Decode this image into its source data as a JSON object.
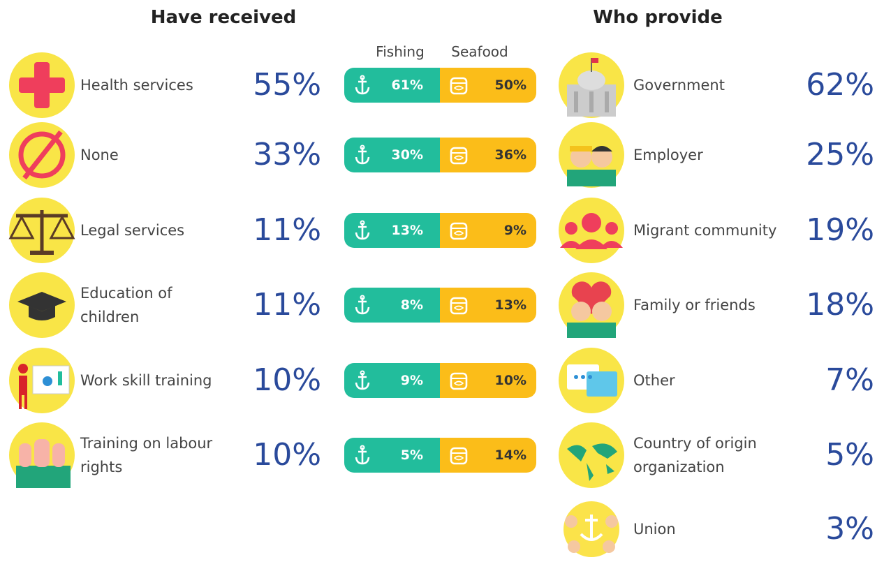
{
  "left": {
    "title": "Have received",
    "headers": [
      "Fishing",
      "Seafood"
    ],
    "items": [
      {
        "label": "Health services",
        "total": "55%",
        "fishing": "61%",
        "seafood": "50%"
      },
      {
        "label": "None",
        "total": "33%",
        "fishing": "30%",
        "seafood": "36%"
      },
      {
        "label": "Legal services",
        "total": "11%",
        "fishing": "13%",
        "seafood": "9%"
      },
      {
        "label": "Education of\nchildren",
        "total": "11%",
        "fishing": "8%",
        "seafood": "13%"
      },
      {
        "label": "Work skill training",
        "total": "10%",
        "fishing": "9%",
        "seafood": "10%"
      },
      {
        "label": "Training on labour\nrights",
        "total": "10%",
        "fishing": "5%",
        "seafood": "14%"
      }
    ]
  },
  "right": {
    "title": "Who provide",
    "items": [
      {
        "label": "Government",
        "value": "62%"
      },
      {
        "label": "Employer",
        "value": "25%"
      },
      {
        "label": "Migrant community",
        "value": "19%"
      },
      {
        "label": "Family or friends",
        "value": "18%"
      },
      {
        "label": "Other",
        "value": "7%"
      },
      {
        "label": "Country of origin\norganization",
        "value": "5%"
      },
      {
        "label": "Union",
        "value": "3%"
      }
    ]
  }
}
